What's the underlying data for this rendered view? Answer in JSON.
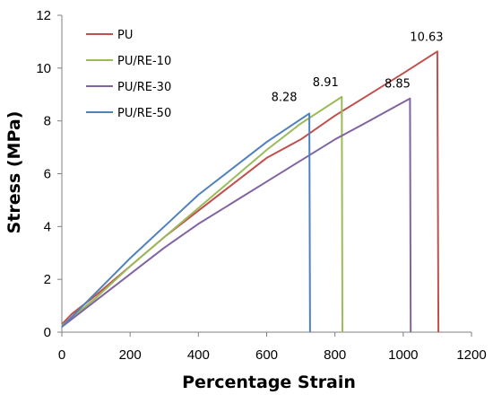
{
  "chart_data": {
    "type": "line",
    "xlabel": "Percentage Strain",
    "ylabel": "Stress (MPa)",
    "xlim": [
      0,
      1200
    ],
    "ylim": [
      0,
      12
    ],
    "xticks": [
      "0",
      "200",
      "400",
      "600",
      "800",
      "1000",
      "1200"
    ],
    "yticks": [
      "0",
      "2",
      "4",
      "6",
      "8",
      "10",
      "12"
    ],
    "grid": false,
    "legend_position": "top-left",
    "series": [
      {
        "name": "PU",
        "color": "#C0504D",
        "points": [
          [
            0,
            0.3
          ],
          [
            30,
            0.7
          ],
          [
            100,
            1.4
          ],
          [
            200,
            2.5
          ],
          [
            300,
            3.6
          ],
          [
            400,
            4.6
          ],
          [
            500,
            5.6
          ],
          [
            600,
            6.6
          ],
          [
            700,
            7.3
          ],
          [
            800,
            8.2
          ],
          [
            900,
            9.0
          ],
          [
            1000,
            9.8
          ],
          [
            1100,
            10.63
          ],
          [
            1103,
            0
          ]
        ],
        "end_label": "10.63"
      },
      {
        "name": "PU/RE-10",
        "color": "#9BBB59",
        "points": [
          [
            0,
            0.25
          ],
          [
            100,
            1.3
          ],
          [
            200,
            2.5
          ],
          [
            300,
            3.6
          ],
          [
            400,
            4.7
          ],
          [
            500,
            5.8
          ],
          [
            600,
            6.9
          ],
          [
            700,
            7.9
          ],
          [
            820,
            8.91
          ],
          [
            822,
            0
          ]
        ],
        "end_label": "8.91"
      },
      {
        "name": "PU/RE-30",
        "color": "#8064A2",
        "points": [
          [
            0,
            0.2
          ],
          [
            100,
            1.2
          ],
          [
            200,
            2.2
          ],
          [
            300,
            3.2
          ],
          [
            400,
            4.1
          ],
          [
            500,
            4.9
          ],
          [
            600,
            5.7
          ],
          [
            700,
            6.5
          ],
          [
            800,
            7.3
          ],
          [
            900,
            8.0
          ],
          [
            1020,
            8.85
          ],
          [
            1022,
            0
          ]
        ],
        "end_label": "8.85"
      },
      {
        "name": "PU/RE-50",
        "color": "#4F81BD",
        "points": [
          [
            0,
            0.2
          ],
          [
            100,
            1.5
          ],
          [
            200,
            2.8
          ],
          [
            300,
            4.0
          ],
          [
            400,
            5.2
          ],
          [
            500,
            6.2
          ],
          [
            600,
            7.2
          ],
          [
            725,
            8.28
          ],
          [
            727,
            0
          ]
        ],
        "end_label": "8.28"
      }
    ]
  }
}
